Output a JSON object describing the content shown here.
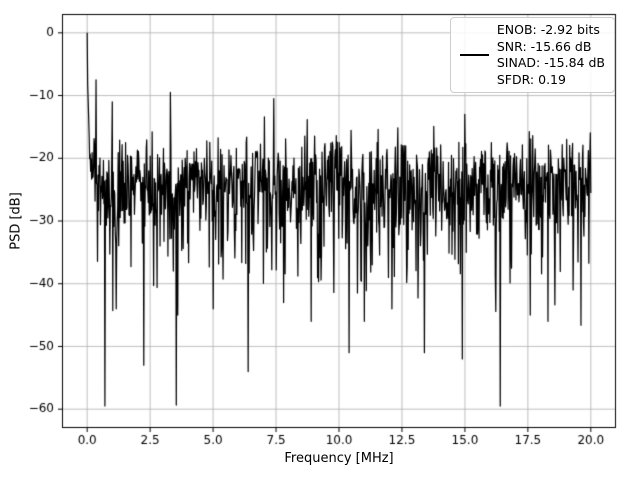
{
  "chart_data": {
    "type": "line",
    "title": "",
    "xlabel": "Frequency [MHz]",
    "ylabel": "PSD [dB]",
    "xlim": [
      -1,
      21
    ],
    "ylim": [
      -63,
      3
    ],
    "grid": true,
    "grid_color": "#b0b0b0",
    "background": "#ffffff",
    "axes_color": "#000000",
    "xticks": {
      "values": [
        0,
        2.5,
        5,
        7.5,
        10,
        12.5,
        15,
        17.5,
        20
      ],
      "labels": [
        "0.0",
        "2.5",
        "5.0",
        "7.5",
        "10.0",
        "12.5",
        "15.0",
        "17.5",
        "20.0"
      ]
    },
    "yticks": {
      "values": [
        0,
        -10,
        -20,
        -30,
        -40,
        -50,
        -60
      ],
      "labels": [
        "0",
        "−10",
        "−20",
        "−30",
        "−40",
        "−50",
        "−60"
      ]
    },
    "legend": {
      "position": "upper right",
      "entries": [
        {
          "color": "#000000",
          "label_lines": [
            "ENOB: -2.92 bits",
            "SNR: -15.66 dB",
            "SINAD: -15.84 dB",
            "SFDR: 0.19"
          ]
        }
      ]
    },
    "metrics": {
      "enob_bits": -2.92,
      "snr_db": -15.66,
      "sinad_db": -15.84,
      "sfdr": 0.19
    },
    "series": [
      {
        "name": "PSD",
        "color": "#000000",
        "linewidth": 1.2,
        "n_points": 1024,
        "x_range": [
          0,
          20
        ],
        "peak": {
          "x": 0.0,
          "y": 0.0
        },
        "noise_model": {
          "distribution": "exponential-power-db",
          "offset_db": -23,
          "seed": 421,
          "floor_top_db": -14,
          "floor_mean_db": -25
        },
        "notable_nulls": [
          [
            1.15,
            -44
          ],
          [
            2.25,
            -53
          ],
          [
            3.6,
            -45
          ],
          [
            5.0,
            -44
          ],
          [
            6.4,
            -54
          ],
          [
            7.8,
            -43
          ],
          [
            8.9,
            -46
          ],
          [
            10.4,
            -51
          ],
          [
            11.0,
            -46
          ],
          [
            12.1,
            -44
          ],
          [
            13.4,
            -51
          ],
          [
            14.9,
            -52
          ],
          [
            16.4,
            -59.5
          ],
          [
            17.6,
            -45
          ],
          [
            18.3,
            -46
          ],
          [
            19.3,
            -41
          ]
        ],
        "notable_peaks": [
          [
            0.35,
            -7.5
          ],
          [
            1.0,
            -11
          ],
          [
            3.3,
            -9.5
          ],
          [
            7.4,
            -10.5
          ],
          [
            15.0,
            -13
          ]
        ]
      }
    ]
  }
}
